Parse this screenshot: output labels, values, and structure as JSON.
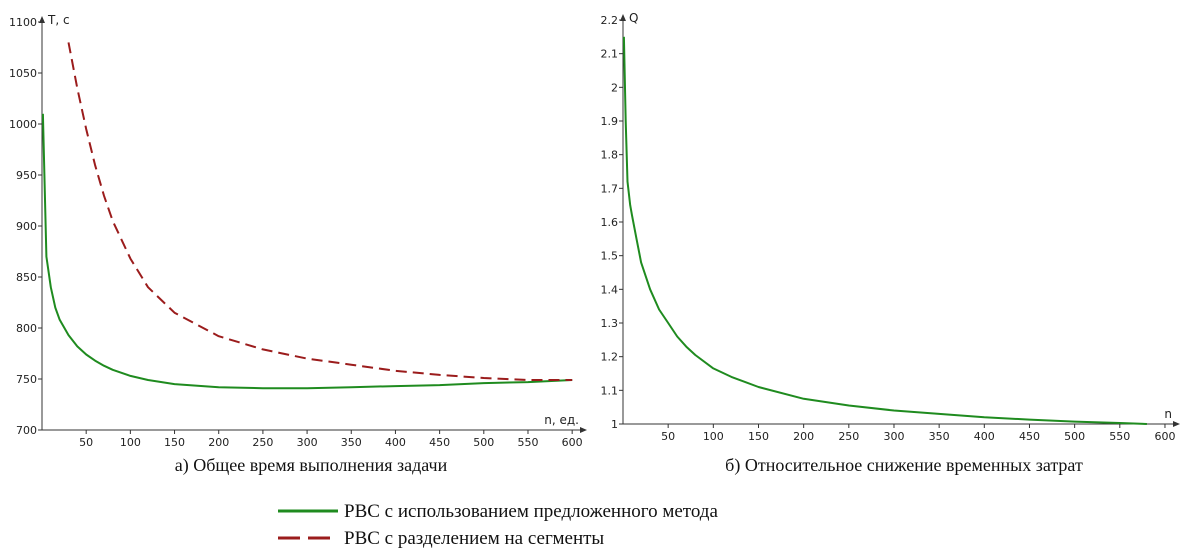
{
  "chart_data": [
    {
      "type": "line",
      "caption": "а) Общее время выполнения задачи",
      "ylabel": "T, c",
      "xlabel": "n, ед.",
      "xlim": [
        0,
        610
      ],
      "ylim": [
        700,
        1100
      ],
      "xticks": [
        50,
        100,
        150,
        200,
        250,
        300,
        350,
        400,
        450,
        500,
        550,
        600
      ],
      "yticks": [
        700,
        750,
        800,
        850,
        900,
        950,
        1000,
        1050,
        1100
      ],
      "grid": false,
      "series": [
        {
          "name": "РВС с использованием предложенного метода",
          "color": "#1f8b1f",
          "dash": "solid",
          "x": [
            1,
            5,
            10,
            15,
            20,
            30,
            40,
            50,
            60,
            70,
            80,
            100,
            120,
            150,
            200,
            250,
            300,
            350,
            400,
            450,
            500,
            550,
            600
          ],
          "y": [
            1010,
            870,
            840,
            820,
            808,
            793,
            782,
            774,
            768,
            763,
            759,
            753,
            749,
            745,
            742,
            741,
            741,
            742,
            743,
            744,
            746,
            747,
            749
          ]
        },
        {
          "name": "РВС с разделением на сегменты",
          "color": "#9b1c1c",
          "dash": "dashed",
          "x": [
            30,
            40,
            50,
            60,
            70,
            80,
            100,
            120,
            150,
            200,
            250,
            300,
            350,
            400,
            450,
            500,
            550,
            600
          ],
          "y": [
            1080,
            1035,
            995,
            960,
            930,
            905,
            868,
            840,
            815,
            792,
            779,
            770,
            764,
            758,
            754,
            751,
            749,
            749
          ]
        }
      ]
    },
    {
      "type": "line",
      "caption": "б) Относительное снижение временных затрат",
      "ylabel": "Q",
      "xlabel": "n",
      "xlim": [
        0,
        610
      ],
      "ylim": [
        1,
        2.2
      ],
      "xticks": [
        50,
        100,
        150,
        200,
        250,
        300,
        350,
        400,
        450,
        500,
        550,
        600
      ],
      "yticks": [
        1,
        1.1,
        1.2,
        1.3,
        1.4,
        1.5,
        1.6,
        1.7,
        1.8,
        1.9,
        2,
        2.1,
        2.2
      ],
      "grid": false,
      "series": [
        {
          "color": "#1f8b1f",
          "dash": "solid",
          "x": [
            1,
            3,
            5,
            8,
            10,
            15,
            20,
            30,
            40,
            50,
            60,
            70,
            80,
            100,
            120,
            150,
            200,
            250,
            300,
            350,
            400,
            450,
            500,
            550,
            580
          ],
          "y": [
            2.15,
            1.9,
            1.72,
            1.65,
            1.62,
            1.55,
            1.48,
            1.4,
            1.34,
            1.3,
            1.26,
            1.23,
            1.205,
            1.165,
            1.14,
            1.11,
            1.075,
            1.055,
            1.04,
            1.03,
            1.02,
            1.013,
            1.007,
            1.003,
            1.0
          ]
        }
      ]
    }
  ],
  "legend": [
    {
      "label": "РВС с использованием предложенного метода",
      "color": "#1f8b1f",
      "dash": "solid"
    },
    {
      "label": "РВС с разделением на сегменты",
      "color": "#9b1c1c",
      "dash": "dashed"
    }
  ]
}
